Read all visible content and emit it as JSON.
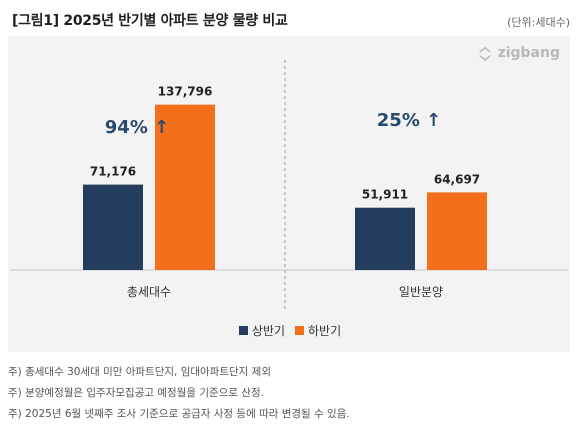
{
  "title": "[그림1] 2025년 반기별 아파트 분양 물량 비교",
  "unit": "(단위:세대수)",
  "logo_text": "zigbang",
  "colors": {
    "first_half": "#253d5c",
    "second_half": "#f46f1b",
    "annotation": "#2a4a6d"
  },
  "chart_data": {
    "type": "bar",
    "categories": [
      "총세대수",
      "일반분양"
    ],
    "series": [
      {
        "name": "상반기",
        "values": [
          71176,
          51911
        ],
        "labels": [
          "71,176",
          "51,911"
        ]
      },
      {
        "name": "하반기",
        "values": [
          137796,
          64697
        ],
        "labels": [
          "137,796",
          "64,697"
        ]
      }
    ],
    "annotations": [
      "94% ↑",
      "25% ↑"
    ],
    "ylim": [
      0,
      150000
    ],
    "legend": "bottom-center"
  },
  "notes": [
    "주) 총세대수 30세대 미만 아파트단지, 임대아파트단지 제외",
    "주) 분양예정월은 입주자모집공고 예정월을 기준으로 산정.",
    "주) 2025년 6월 넷째주 조사 기준으로 공급자 사정 등에 따라 변경될 수 있음."
  ]
}
